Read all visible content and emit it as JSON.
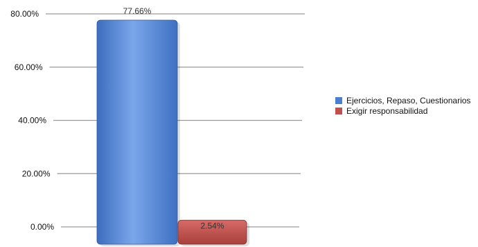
{
  "chart_data": {
    "type": "bar",
    "categories": [
      "Ejercicios, Repaso, Cuestionarios",
      "Exigir responsabilidad"
    ],
    "series": [
      {
        "name": "Ejercicios, Repaso, Cuestionarios",
        "value": 77.66,
        "label": "77.66%",
        "color": "#4a7fd0"
      },
      {
        "name": "Exigir responsabilidad",
        "value": 2.54,
        "label": "2.54%",
        "color": "#c0504d"
      }
    ],
    "yticks": [
      "0.00%",
      "20.00%",
      "40.00%",
      "60.00%",
      "80.00%"
    ],
    "ylim": [
      0,
      80
    ],
    "grid": true,
    "legend_position": "right"
  }
}
